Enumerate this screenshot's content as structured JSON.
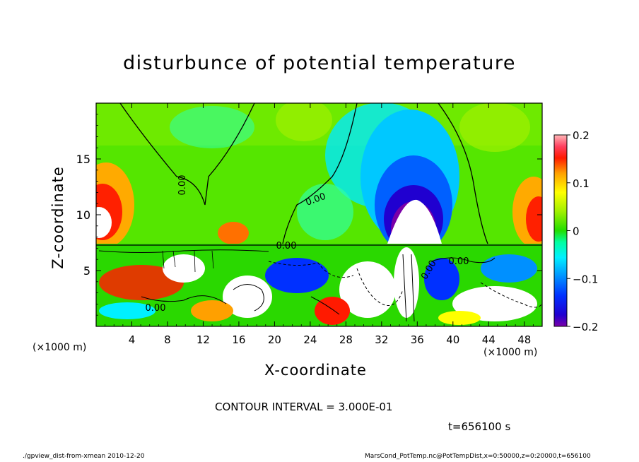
{
  "chart_data": {
    "type": "heatmap",
    "title": "disturbunce of potential temperature",
    "xlabel": "X-coordinate",
    "ylabel": "Z-coordinate",
    "x_unit": "(×1000 m)",
    "y_unit": "(×1000 m)",
    "xlim": [
      0,
      50
    ],
    "ylim": [
      0,
      20
    ],
    "x_ticks": [
      4,
      8,
      12,
      16,
      20,
      24,
      28,
      32,
      36,
      40,
      44,
      48
    ],
    "y_ticks": [
      5,
      10,
      15
    ],
    "colorbar": {
      "min": -0.2,
      "max": 0.2,
      "tick_values": [
        0.2,
        0.1,
        0,
        -0.1,
        -0.2
      ],
      "tick_labels": [
        "0.2",
        "0.1",
        "0",
        "−0.1",
        "−0.2"
      ]
    },
    "contour_labels": [
      "0.00",
      "0.00",
      "0.00",
      "0.00",
      "0.00",
      "0.00"
    ],
    "contour_interval_text": "CONTOUR INTERVAL = 3.000E-01",
    "time_text": "t=656100 s",
    "footer_left": "./gpview_dist-from-xmean  2010-12-20",
    "footer_right": "MarsCond_PotTemp.nc@PotTempDist,x=0:50000,z=0:20000,t=656100",
    "colors": {
      "white": "#ffffff",
      "cyan": "#00ffff",
      "blue": "#0030ff",
      "purple": "#7a00a8",
      "green": "#22dd00",
      "yellow": "#ffff00",
      "red": "#ff1a00",
      "pink": "#ffaaaa"
    }
  }
}
